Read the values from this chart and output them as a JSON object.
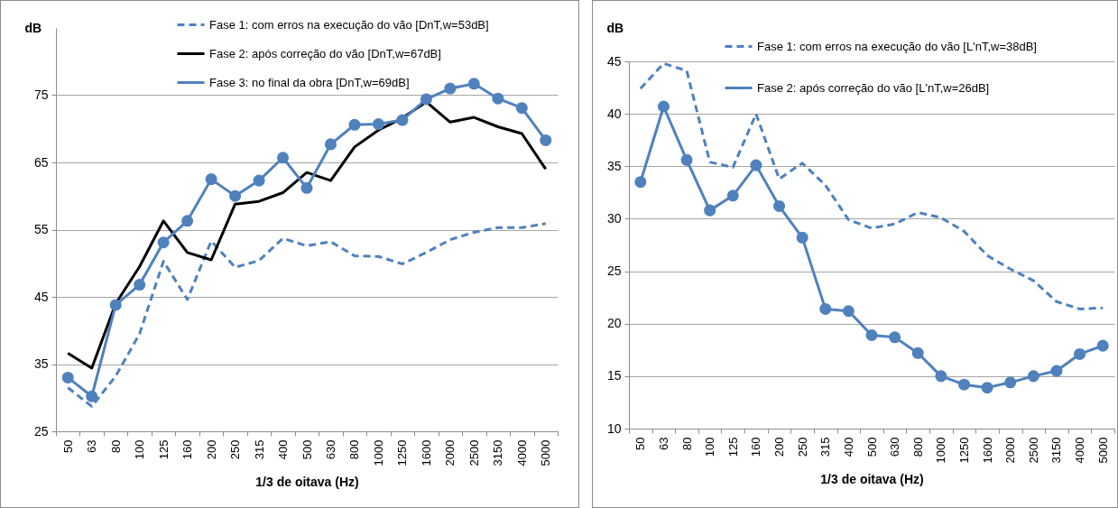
{
  "chart_data": [
    {
      "type": "line",
      "ylabel": "dB",
      "xlabel": "1/3 de oitava (Hz)",
      "categories": [
        "50",
        "63",
        "80",
        "100",
        "125",
        "160",
        "200",
        "250",
        "315",
        "400",
        "500",
        "630",
        "800",
        "1000",
        "1250",
        "1600",
        "2000",
        "2500",
        "3150",
        "4000",
        "5000"
      ],
      "ylim": [
        25,
        85
      ],
      "yticks": [
        25,
        35,
        45,
        55,
        65,
        75
      ],
      "grid": "y",
      "legend": "top",
      "series": [
        {
          "name": "Fase 1: com erros na execução do vão [DnT,w=53dB]",
          "color": "#4f81bd",
          "line_style": "dashed",
          "marker": "none",
          "values": [
            31.5,
            28.7,
            33.2,
            39.5,
            50.3,
            44.6,
            53.3,
            49.4,
            50.4,
            53.7,
            52.6,
            53.2,
            51.1,
            51.0,
            49.9,
            51.6,
            53.5,
            54.6,
            55.3,
            55.3,
            55.9
          ]
        },
        {
          "name": "Fase 2: após correção do vão [DnT,w=67dB]",
          "color": "#000000",
          "line_style": "solid",
          "marker": "none",
          "values": [
            36.6,
            34.4,
            44.0,
            49.5,
            56.3,
            51.6,
            50.5,
            58.8,
            59.2,
            60.5,
            63.5,
            62.3,
            67.3,
            69.8,
            71.6,
            74.0,
            71.0,
            71.7,
            70.3,
            69.3,
            64.0
          ]
        },
        {
          "name": "Fase 3: no final da obra [DnT,w=69dB]",
          "color": "#4f81bd",
          "line_style": "solid",
          "marker": "circle",
          "values": [
            33.0,
            30.2,
            43.8,
            46.8,
            53.1,
            56.3,
            62.5,
            60.0,
            62.3,
            65.7,
            61.2,
            67.7,
            70.6,
            70.7,
            71.3,
            74.4,
            76.0,
            76.7,
            74.5,
            73.1,
            68.3
          ]
        }
      ]
    },
    {
      "type": "line",
      "ylabel": "dB",
      "xlabel": "1/3 de oitava (Hz)",
      "categories": [
        "50",
        "63",
        "80",
        "100",
        "125",
        "160",
        "200",
        "250",
        "315",
        "400",
        "500",
        "630",
        "800",
        "1000",
        "1250",
        "1600",
        "2000",
        "2500",
        "3150",
        "4000",
        "5000"
      ],
      "ylim": [
        10,
        45
      ],
      "yticks": [
        10,
        15,
        20,
        25,
        30,
        35,
        40,
        45
      ],
      "grid": "y",
      "legend": "top",
      "series": [
        {
          "name": "Fase 1: com erros na execução do vão [L'nT,w=38dB]",
          "color": "#4f81bd",
          "line_style": "dashed",
          "marker": "none",
          "values": [
            42.4,
            44.8,
            44.1,
            35.4,
            34.9,
            40.0,
            33.8,
            35.3,
            33.2,
            29.9,
            29.1,
            29.5,
            30.6,
            30.1,
            28.8,
            26.5,
            25.2,
            24.1,
            22.1,
            21.4,
            21.5
          ]
        },
        {
          "name": "Fase 2: após correção do vão [L'nT,w=26dB]",
          "color": "#4f81bd",
          "line_style": "solid",
          "marker": "circle",
          "values": [
            33.5,
            40.7,
            35.6,
            30.8,
            32.2,
            35.1,
            31.2,
            28.2,
            21.4,
            21.2,
            18.9,
            18.7,
            17.2,
            15.0,
            14.2,
            13.9,
            14.4,
            15.0,
            15.5,
            17.1,
            17.9
          ]
        }
      ]
    }
  ]
}
